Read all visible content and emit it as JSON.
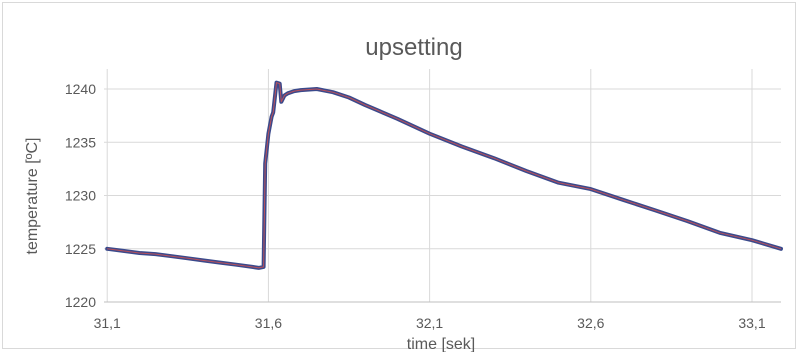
{
  "chart_data": {
    "type": "line",
    "title": "upsetting",
    "xlabel": "time [sek]",
    "ylabel": "temperature [ºC]",
    "xlim": [
      31.09,
      33.19
    ],
    "ylim": [
      1220,
      1242
    ],
    "x_ticks": [
      31.1,
      31.6,
      32.1,
      32.6,
      33.1
    ],
    "x_tick_labels": [
      "31,1",
      "31,6",
      "32,1",
      "32,6",
      "33,1"
    ],
    "y_ticks": [
      1220,
      1225,
      1230,
      1235,
      1240
    ],
    "y_tick_labels": [
      "1220",
      "1225",
      "1230",
      "1235",
      "1240"
    ],
    "grid": true,
    "legend": "none",
    "colors": {
      "line": "#3b4a8c",
      "overlay": "#d9534f",
      "grid": "#d9d9d9",
      "text": "#595959"
    },
    "series": [
      {
        "x": [
          31.1,
          31.15,
          31.2,
          31.25,
          31.3,
          31.35,
          31.4,
          31.45,
          31.5,
          31.55,
          31.57,
          31.585,
          31.59,
          31.6,
          31.61,
          31.615,
          31.625,
          31.635,
          31.64,
          31.65,
          31.66,
          31.68,
          31.7,
          31.75,
          31.8,
          31.85,
          31.9,
          32.0,
          32.1,
          32.2,
          32.3,
          32.4,
          32.5,
          32.6,
          32.7,
          32.8,
          32.9,
          33.0,
          33.1,
          33.19
        ],
        "y": [
          1225.0,
          1224.8,
          1224.6,
          1224.5,
          1224.3,
          1224.1,
          1223.9,
          1223.7,
          1223.5,
          1223.3,
          1223.2,
          1223.3,
          1233.0,
          1235.8,
          1237.4,
          1237.8,
          1240.6,
          1240.5,
          1238.8,
          1239.4,
          1239.6,
          1239.8,
          1239.9,
          1240.0,
          1239.7,
          1239.2,
          1238.5,
          1237.2,
          1235.8,
          1234.6,
          1233.5,
          1232.3,
          1231.2,
          1230.6,
          1229.6,
          1228.6,
          1227.6,
          1226.5,
          1225.8,
          1225.0
        ]
      }
    ]
  }
}
